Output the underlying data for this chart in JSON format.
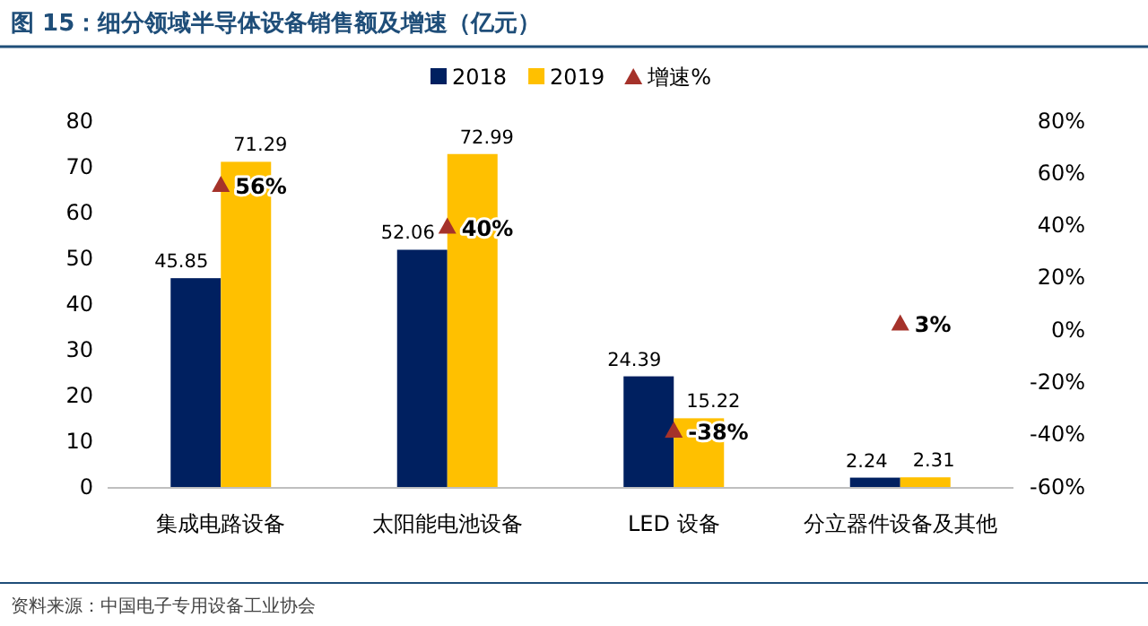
{
  "chart_data": {
    "type": "bar",
    "title": "图 15：细分领域半导体设备销售额及增速（亿元）",
    "categories": [
      "集成电路设备",
      "太阳能电池设备",
      "LED 设备",
      "分立器件设备及其他"
    ],
    "series": [
      {
        "name": "2018",
        "color": "#002060",
        "values": [
          45.85,
          52.06,
          24.39,
          2.24
        ]
      },
      {
        "name": "2019",
        "color": "#ffc000",
        "values": [
          71.29,
          72.99,
          15.22,
          2.31
        ]
      },
      {
        "name": "增速%",
        "type": "scatter",
        "axis": "y2",
        "marker": "triangle",
        "color": "#a5322a",
        "values": [
          56,
          40,
          -38,
          3
        ],
        "value_labels": [
          "56%",
          "40%",
          "-38%",
          "3%"
        ]
      }
    ],
    "ylim": [
      0,
      80
    ],
    "yticks": [
      0,
      10,
      20,
      30,
      40,
      50,
      60,
      70,
      80
    ],
    "y2lim": [
      -60,
      80
    ],
    "y2ticks": [
      {
        "value": -60,
        "label": "-60%"
      },
      {
        "value": -40,
        "label": "-40%"
      },
      {
        "value": -20,
        "label": "-20%"
      },
      {
        "value": 0,
        "label": "0%"
      },
      {
        "value": 20,
        "label": "20%"
      },
      {
        "value": 40,
        "label": "40%"
      },
      {
        "value": 60,
        "label": "60%"
      },
      {
        "value": 80,
        "label": "80%"
      }
    ],
    "data_labels": true,
    "legend": "top",
    "grid": false,
    "annotations": [
      "资料来源：中国电子专用设备工业协会"
    ]
  }
}
